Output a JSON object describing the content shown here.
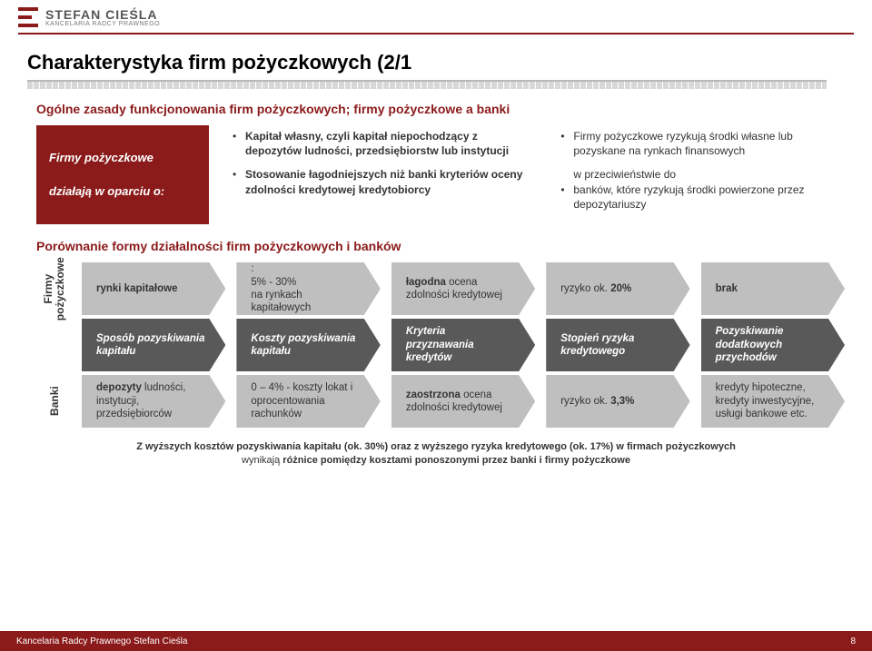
{
  "brand": {
    "name": "STEFAN CIEŚLA",
    "sub": "KANCELARIA RADCY PRAWNEGO"
  },
  "page_title": "Charakterystyka firm pożyczkowych (2/1",
  "section1_label": "Ogólne zasady funkcjonowania firm pożyczkowych; firmy pożyczkowe a banki",
  "redbox": {
    "line1": "Firmy pożyczkowe",
    "line2": "działają w oparciu o:"
  },
  "col1": {
    "b1": "Kapitał własny, czyli kapitał niepochodzący z depozytów ludności, przedsiębiorstw lub instytucji",
    "b2": "Stosowanie łagodniejszych niż banki kryteriów oceny zdolności kredytowej kredytobiorcy"
  },
  "col2": {
    "b1": "Firmy pożyczkowe ryzykują środki własne lub pozyskane na rynkach finansowych",
    "sub": "w przeciwieństwie do",
    "b2": "banków, które ryzykują środki powierzone przez depozytariuszy"
  },
  "section2_label": "Porównanie formy działalności firm pożyczkowych i banków",
  "rows": {
    "r1_label": "Firmy\npożyczkowe",
    "r2_label": "",
    "r3_label": "Banki"
  },
  "grid": {
    "r1": [
      "rynki kapitałowe",
      ":\n5% - 30%\nna rynkach kapitałowych",
      "łagodna ocena zdolności kredytowej",
      "ryzyko ok. 20%",
      "brak"
    ],
    "r2": [
      "Sposób pozyskiwania kapitału",
      "Koszty pozyskiwania kapitału",
      "Kryteria przyznawania kredytów",
      "Stopień ryzyka kredytowego",
      "Pozyskiwanie dodatkowych przychodów"
    ],
    "r3": [
      "depozyty ludności, instytucji, przedsiębiorców",
      "0 – 4% - koszty lokat i oprocentowania rachunków",
      "zaostrzona ocena zdolności kredytowej",
      "ryzyko ok. 3,3%",
      "kredyty hipoteczne, kredyty inwestycyjne, usługi bankowe etc."
    ]
  },
  "footnote": {
    "line1a": "Z wyższych kosztów pozyskiwania kapitału (ok. 30%) oraz z wyższego ryzyka kredytowego (ok. 17%) w firmach pożyczkowych",
    "line2a": "wynikają ",
    "line2b": "różnice pomiędzy kosztami ponoszonymi przez banki i firmy pożyczkowe"
  },
  "footer": {
    "left": "Kancelaria Radcy Prawnego Stefan Cieśla",
    "page": "8"
  },
  "colors": {
    "brand_red": "#8b1a1a",
    "chev_light": "#bfbfbf",
    "chev_dark": "#595959"
  }
}
